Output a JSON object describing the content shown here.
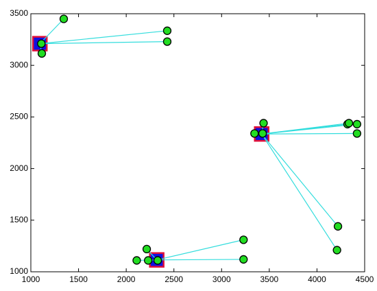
{
  "chart_data": {
    "type": "cluster-network",
    "xlim": [
      1000,
      4500
    ],
    "ylim": [
      1000,
      3500
    ],
    "xticks": [
      1000,
      1500,
      2000,
      2500,
      3000,
      3500,
      4000,
      4500
    ],
    "yticks": [
      1000,
      1500,
      2000,
      2500,
      3000,
      3500
    ],
    "head_color": "#1010e0",
    "head_edge_color": "#e0103a",
    "node_color": "#22dd22",
    "node_edge_color": "#000000",
    "link_color": "#33dddd",
    "clusters": [
      {
        "head": {
          "x": 1095,
          "y": 3210
        },
        "members": {
          "x": [
            1345,
            2430,
            2430,
            1115,
            1110
          ],
          "y": [
            3450,
            3335,
            3230,
            3115,
            3210
          ]
        }
      },
      {
        "head": {
          "x": 3420,
          "y": 2335
        },
        "members": {
          "x": [
            3440,
            3345,
            3430,
            4320,
            4335,
            4420,
            4420,
            4220,
            4210
          ],
          "y": [
            2440,
            2340,
            2340,
            2430,
            2440,
            2430,
            2340,
            1440,
            1210
          ]
        }
      },
      {
        "head": {
          "x": 2320,
          "y": 1115
        },
        "members": {
          "x": [
            2215,
            2110,
            2230,
            2330,
            3230,
            3230
          ],
          "y": [
            1220,
            1110,
            1110,
            1110,
            1310,
            1120
          ]
        }
      }
    ]
  }
}
